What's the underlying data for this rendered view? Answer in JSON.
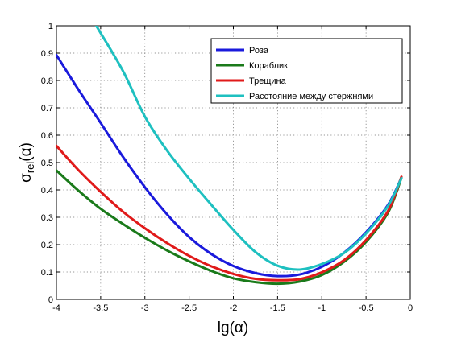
{
  "chart_data": {
    "type": "line",
    "xlabel": "lg(α)",
    "ylabel": "σ_rel(α)",
    "ylabel_main": "σ",
    "ylabel_sub": "rel",
    "ylabel_paren": "(α)",
    "xlim": [
      -4,
      0
    ],
    "ylim": [
      0,
      1
    ],
    "grid": true,
    "legend_position": "top-right",
    "x_ticks": [
      -4,
      -3.5,
      -3,
      -2.5,
      -2,
      -1.5,
      -1,
      -0.5,
      0
    ],
    "x_tick_labels": [
      "-4",
      "-3.5",
      "-3",
      "-2.5",
      "-2",
      "-1.5",
      "-1",
      "-0.5",
      "0"
    ],
    "y_ticks": [
      0,
      0.1,
      0.2,
      0.3,
      0.4,
      0.5,
      0.6,
      0.7,
      0.8,
      0.9,
      1
    ],
    "y_tick_labels": [
      "0",
      "0.1",
      "0.2",
      "0.3",
      "0.4",
      "0.5",
      "0.6",
      "0.7",
      "0.8",
      "0.9",
      "1"
    ],
    "series": [
      {
        "name": "Роза",
        "color": "#1a1adc",
        "x": [
          -4,
          -3.75,
          -3.5,
          -3.25,
          -3,
          -2.75,
          -2.5,
          -2.25,
          -2,
          -1.75,
          -1.5,
          -1.25,
          -1,
          -0.75,
          -0.5,
          -0.25,
          -0.1
        ],
        "y": [
          0.893,
          0.766,
          0.645,
          0.522,
          0.41,
          0.311,
          0.228,
          0.166,
          0.122,
          0.096,
          0.085,
          0.091,
          0.119,
          0.17,
          0.245,
          0.346,
          0.444
        ]
      },
      {
        "name": "Кораблик",
        "color": "#1a7a1a",
        "x": [
          -4,
          -3.75,
          -3.5,
          -3.25,
          -3,
          -2.75,
          -2.5,
          -2.25,
          -2,
          -1.75,
          -1.5,
          -1.25,
          -1,
          -0.75,
          -0.5,
          -0.25,
          -0.1
        ],
        "y": [
          0.471,
          0.397,
          0.331,
          0.276,
          0.225,
          0.179,
          0.139,
          0.104,
          0.077,
          0.063,
          0.057,
          0.065,
          0.089,
          0.137,
          0.21,
          0.318,
          0.444
        ]
      },
      {
        "name": "Трещина",
        "color": "#e01a1a",
        "x": [
          -4,
          -3.75,
          -3.5,
          -3.25,
          -3,
          -2.75,
          -2.5,
          -2.25,
          -2,
          -1.75,
          -1.5,
          -1.25,
          -1,
          -0.75,
          -0.5,
          -0.25,
          -0.1
        ],
        "y": [
          0.561,
          0.472,
          0.393,
          0.321,
          0.26,
          0.206,
          0.159,
          0.121,
          0.093,
          0.075,
          0.07,
          0.074,
          0.099,
          0.143,
          0.217,
          0.324,
          0.448
        ]
      },
      {
        "name": "Расстояние между стержнями",
        "color": "#1ec0c0",
        "x": [
          -3.55,
          -3.25,
          -3,
          -2.75,
          -2.5,
          -2.25,
          -2,
          -1.75,
          -1.5,
          -1.25,
          -1,
          -0.75,
          -0.5,
          -0.25,
          -0.1
        ],
        "y": [
          1.0,
          0.836,
          0.668,
          0.544,
          0.441,
          0.346,
          0.254,
          0.173,
          0.123,
          0.109,
          0.129,
          0.169,
          0.241,
          0.342,
          0.443
        ]
      }
    ]
  }
}
